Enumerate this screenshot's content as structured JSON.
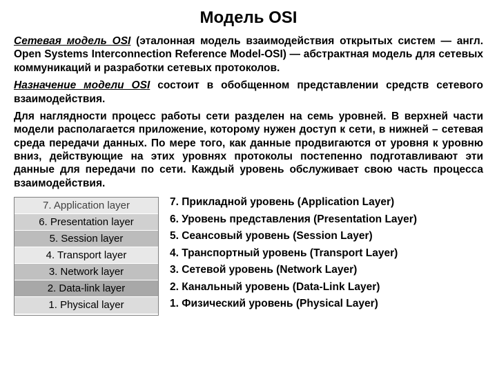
{
  "title": "Модель OSI",
  "para1_lead": "Сетевая модель OSI",
  "para1_rest": " (эталонная модель взаимодействия открытых систем — англ. Open Systems Interconnection Reference Model-OSI) — абстрактная модель для сетевых коммуникаций и разработки сетевых протоколов.",
  "para2_lead": "Назначение модели OSI",
  "para2_rest": " состоит в обобщенном представлении средств сетевого взаимодействия.",
  "para3": "Для наглядности процесс работы сети разделен на семь уровней. В верхней части модели располагается приложение, которому нужен доступ к сети, в нижней – сетевая среда передачи данных. По мере того, как данные продвигаются от уровня к уровню вниз, действующие на этих уровнях протоколы постепенно подготавливают эти данные для передачи по сети. Каждый уровень обслуживает свою часть процесса взаимодействия.",
  "table_colors": {
    "row_border": "#ffffff",
    "table_border": "#808080"
  },
  "layers_table": [
    {
      "label": "7. Application layer",
      "bg": "#e8e8e8",
      "fg": "#404040"
    },
    {
      "label": "6. Presentation layer",
      "bg": "#d0d0d0",
      "fg": "#000000"
    },
    {
      "label": "5. Session layer",
      "bg": "#bcbcbc",
      "fg": "#000000"
    },
    {
      "label": "4. Transport layer",
      "bg": "#e8e8e8",
      "fg": "#000000"
    },
    {
      "label": "3. Network layer",
      "bg": "#c0c0c0",
      "fg": "#000000"
    },
    {
      "label": "2. Data-link layer",
      "bg": "#a8a8a8",
      "fg": "#000000"
    },
    {
      "label": "1. Physical layer",
      "bg": "#dcdcdc",
      "fg": "#000000"
    }
  ],
  "layers_list": [
    "7. Прикладной уровень (Application Layer)",
    "6. Уровень представления (Presentation Layer)",
    "5. Сеансовый уровень (Session Layer)",
    "4. Транспортный уровень (Transport Layer)",
    "3. Сетевой уровень (Network Layer)",
    "2. Канальный уровень  (Data-Link Layer)",
    "1. Физический уровень (Physical Layer)"
  ]
}
